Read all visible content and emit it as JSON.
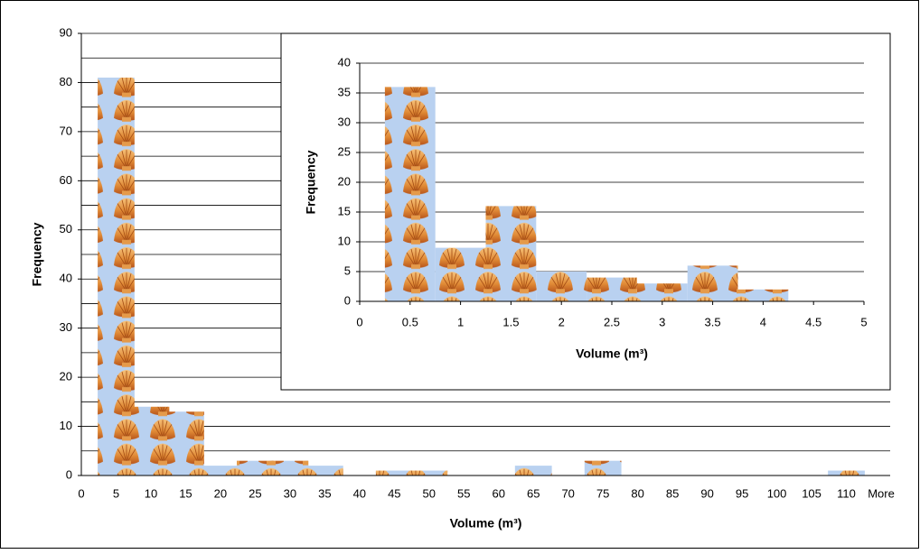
{
  "chart_data": [
    {
      "type": "bar",
      "x_label": "Volume (m³)",
      "y_label": "Frequency",
      "categories": [
        "0",
        "5",
        "10",
        "15",
        "20",
        "25",
        "30",
        "35",
        "40",
        "45",
        "50",
        "55",
        "60",
        "65",
        "70",
        "75",
        "80",
        "85",
        "90",
        "95",
        "100",
        "105",
        "110",
        "More"
      ],
      "values": [
        0,
        81,
        14,
        13,
        2,
        3,
        3,
        2,
        0,
        1,
        1,
        0,
        0,
        2,
        0,
        3,
        0,
        0,
        0,
        0,
        0,
        0,
        1,
        0
      ],
      "ylim": [
        0,
        90
      ],
      "yticks": [
        0,
        10,
        20,
        30,
        40,
        50,
        60,
        70,
        80,
        90
      ],
      "yminor": [
        5,
        15,
        25,
        35,
        45,
        55,
        65,
        75,
        85
      ],
      "grid": true
    },
    {
      "type": "bar",
      "x_label": "Volume (m³)",
      "y_label": "Frequency",
      "x": [
        0.5,
        1,
        1.5,
        2,
        2.5,
        3,
        3.5,
        4
      ],
      "values": [
        36,
        9,
        16,
        5,
        4,
        3,
        6,
        2
      ],
      "xlim": [
        0,
        5
      ],
      "xticks": [
        0,
        0.5,
        1,
        1.5,
        2,
        2.5,
        3,
        3.5,
        4,
        4.5,
        5
      ],
      "ylim": [
        0,
        40
      ],
      "yticks": [
        0,
        5,
        10,
        15,
        20,
        25,
        30,
        35,
        40
      ],
      "grid": true
    }
  ]
}
